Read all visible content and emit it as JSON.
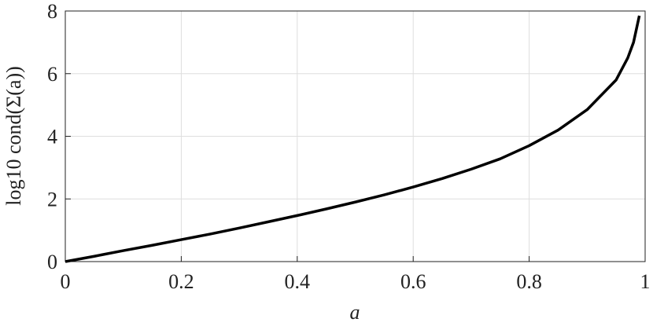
{
  "chart_data": {
    "type": "line",
    "xlabel": "a",
    "ylabel": "log10 cond(Σ(a))",
    "x": [
      0,
      0.05,
      0.1,
      0.15,
      0.2,
      0.25,
      0.3,
      0.35,
      0.4,
      0.45,
      0.5,
      0.55,
      0.6,
      0.65,
      0.7,
      0.75,
      0.8,
      0.85,
      0.9,
      0.95,
      0.97,
      0.98,
      0.99
    ],
    "series": [
      {
        "color": "#000000",
        "values": [
          0,
          0.17,
          0.35,
          0.52,
          0.7,
          0.88,
          1.07,
          1.27,
          1.47,
          1.68,
          1.9,
          2.13,
          2.38,
          2.65,
          2.95,
          3.28,
          3.7,
          4.2,
          4.85,
          5.8,
          6.5,
          7.0,
          7.85
        ]
      }
    ],
    "xlim": [
      0,
      1
    ],
    "ylim": [
      0,
      8
    ],
    "xticks": [
      0,
      0.2,
      0.4,
      0.6,
      0.8,
      1
    ],
    "yticks": [
      0,
      2,
      4,
      6,
      8
    ],
    "grid": true
  }
}
